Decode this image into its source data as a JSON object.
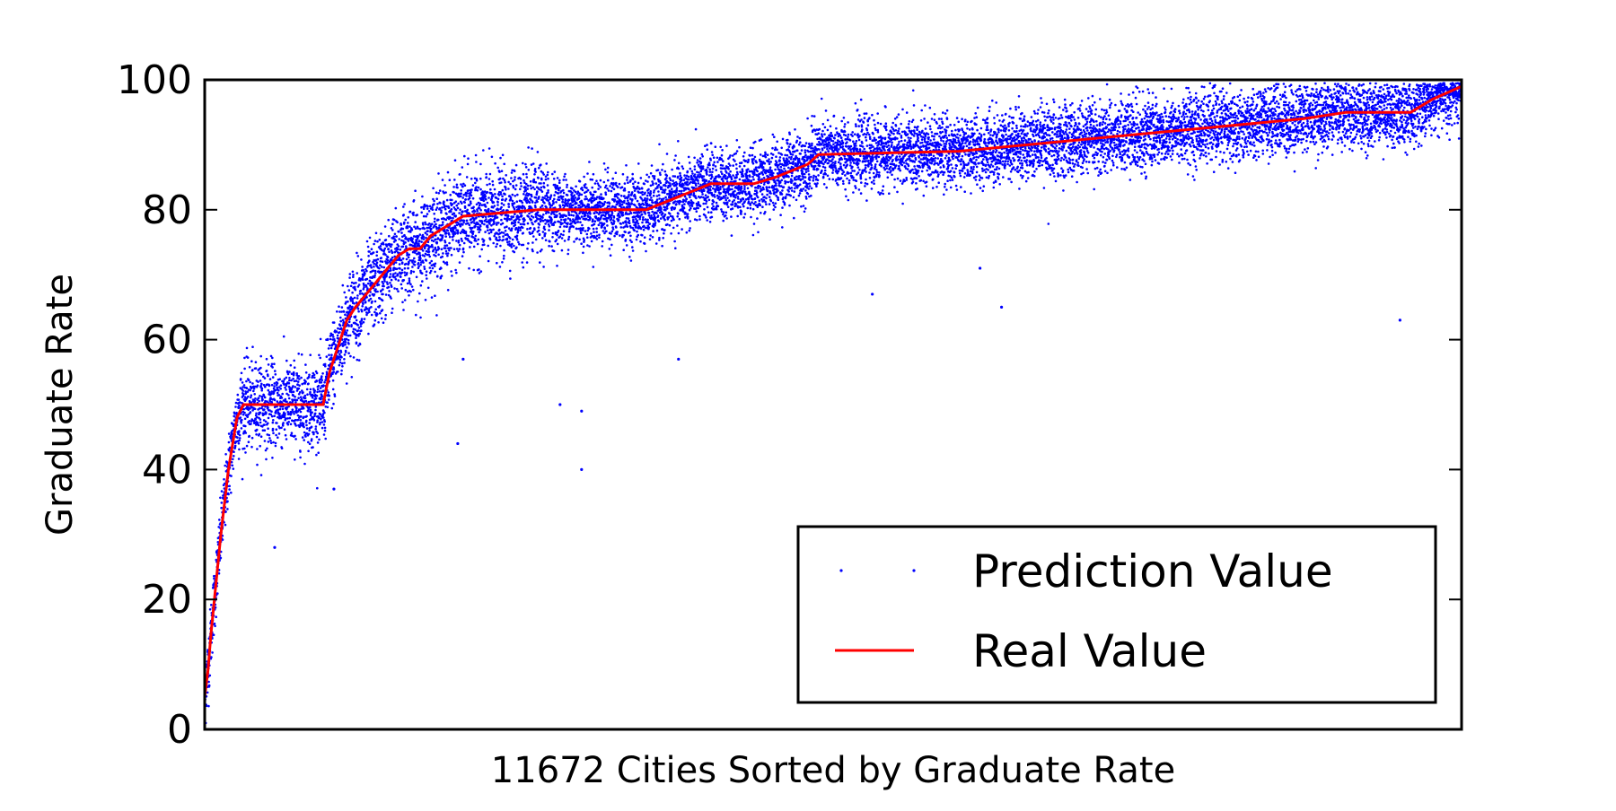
{
  "chart_data": {
    "type": "scatter",
    "title": "",
    "xlabel": "11672 Cities Sorted by Graduate Rate",
    "ylabel": "Graduate Rate",
    "xlim": [
      0,
      11672
    ],
    "ylim": [
      0,
      100
    ],
    "y_ticks": [
      "0",
      "20",
      "40",
      "60",
      "80",
      "100"
    ],
    "x_ticks_shown": false,
    "grid": false,
    "legend": {
      "placement": "bottom-right",
      "entries": [
        {
          "label": "Prediction Value",
          "marker": "dot",
          "color": "#0000ff"
        },
        {
          "label": "Real Value",
          "marker": "line",
          "color": "#ff0000"
        }
      ]
    },
    "n_points": 11672,
    "series": [
      {
        "name": "Real Value",
        "kind": "line",
        "color": "#ff0000",
        "x": [
          0,
          30,
          60,
          90,
          150,
          220,
          300,
          360,
          1100,
          1160,
          1240,
          1320,
          1400,
          1500,
          1600,
          1700,
          1800,
          1900,
          2000,
          2100,
          2200,
          2300,
          2400,
          3100,
          4100,
          4400,
          4550,
          4700,
          5100,
          5300,
          5450,
          5600,
          5700,
          7000,
          10200,
          10600,
          11200,
          11400,
          11672
        ],
        "values": [
          5,
          9,
          15,
          20,
          30,
          40,
          48,
          50,
          50,
          55,
          59,
          63,
          65,
          67,
          69,
          71,
          73,
          74,
          74,
          76,
          77,
          78,
          79,
          80,
          80,
          82,
          83,
          84,
          84,
          85,
          86,
          87,
          88.5,
          89,
          94,
          95,
          95,
          97,
          99
        ]
      },
      {
        "name": "Prediction Value",
        "kind": "scatter",
        "color": "#0000ff",
        "noise_sd": 2.6,
        "note_outliers": [
          [
            2350,
            44
          ],
          [
            2400,
            57
          ],
          [
            3500,
            49
          ],
          [
            3500,
            40
          ],
          [
            3300,
            50
          ],
          [
            4400,
            57
          ],
          [
            6200,
            67
          ],
          [
            7200,
            71
          ],
          [
            7400,
            65
          ],
          [
            11100,
            63
          ],
          [
            650,
            28
          ],
          [
            1200,
            37
          ]
        ]
      }
    ]
  }
}
